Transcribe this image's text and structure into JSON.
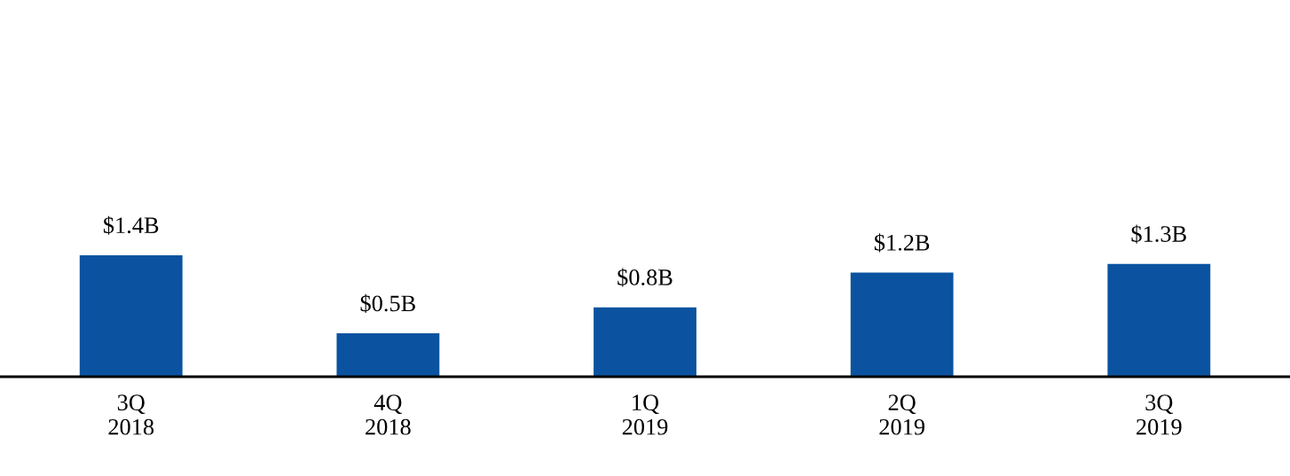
{
  "chart_data": {
    "type": "bar",
    "categories": [
      "3Q\n2018",
      "4Q\n2018",
      "1Q\n2019",
      "2Q\n2019",
      "3Q\n2019"
    ],
    "values": [
      1.4,
      0.5,
      0.8,
      1.2,
      1.3
    ],
    "value_labels": [
      "$1.4B",
      "$0.5B",
      "$0.8B",
      "$1.2B",
      "$1.3B"
    ],
    "color": "#0b53a0",
    "grid": false,
    "legend": false
  }
}
